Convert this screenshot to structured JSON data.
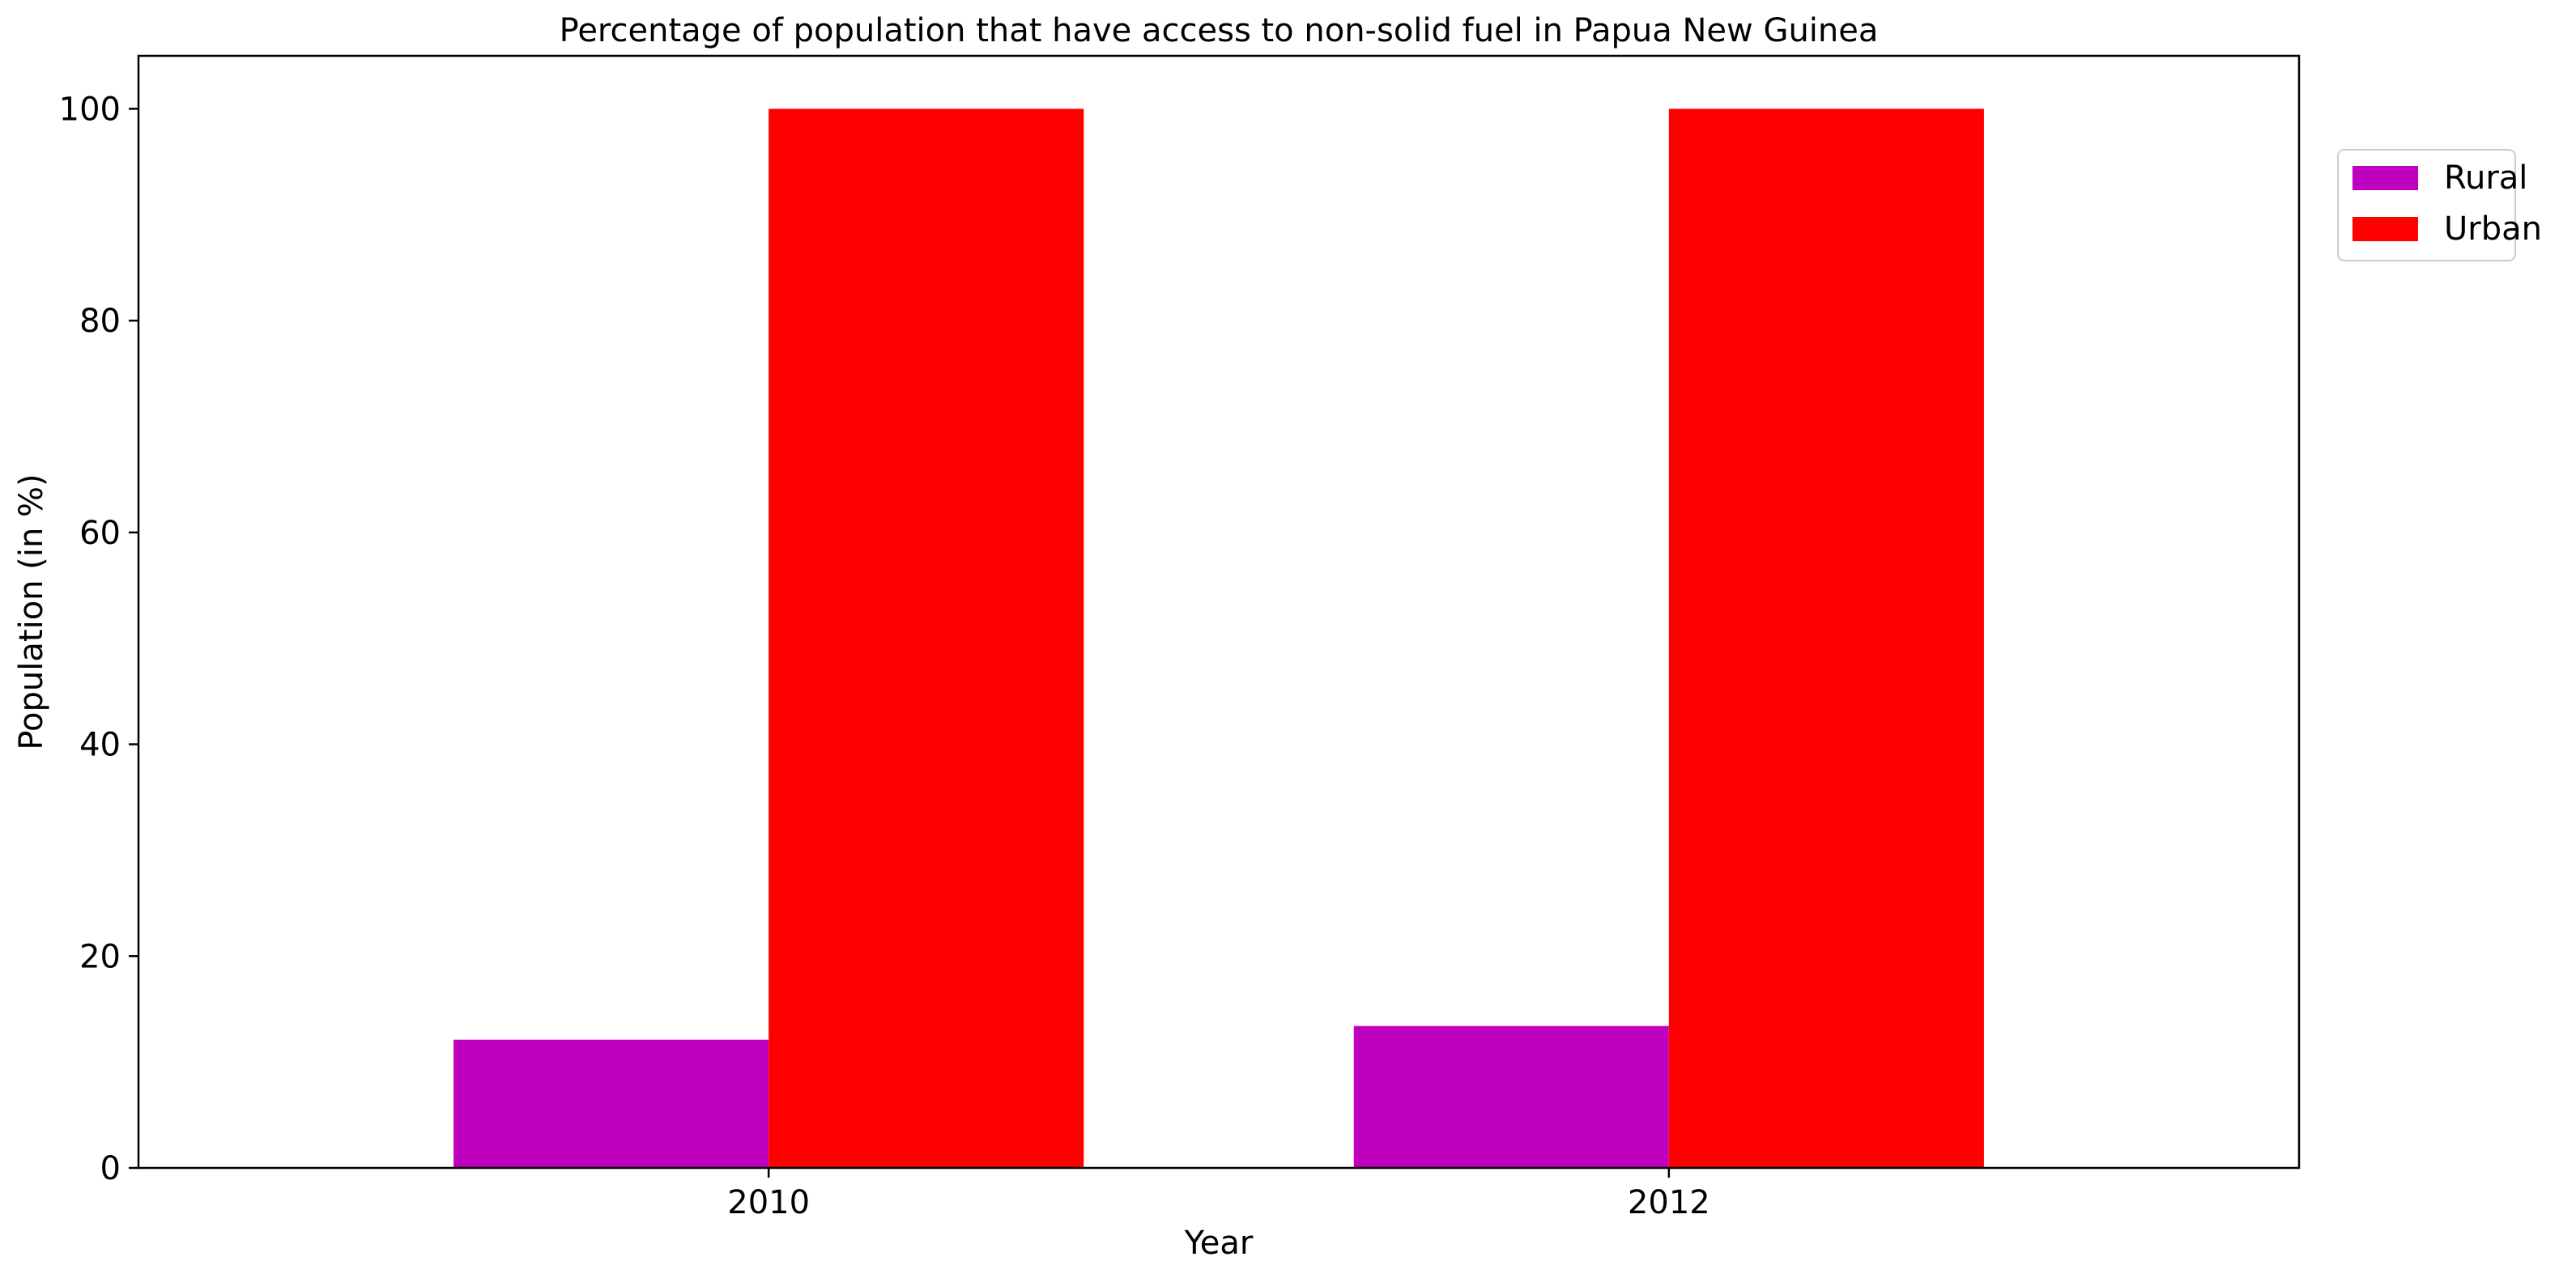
{
  "chart_data": {
    "type": "bar",
    "title": "Percentage of population that have access to non-solid fuel in Papua New Guinea",
    "xlabel": "Year",
    "ylabel": "Population (in %)",
    "categories": [
      "2010",
      "2012"
    ],
    "series": [
      {
        "name": "Rural",
        "values": [
          12.1,
          13.4
        ],
        "color": "#bf00bf"
      },
      {
        "name": "Urban",
        "values": [
          100,
          100
        ],
        "color": "#ff0000"
      }
    ],
    "ylim": [
      0,
      105
    ],
    "yticks": [
      0,
      20,
      40,
      60,
      80,
      100
    ],
    "grid": false,
    "legend_position": "upper-right-outside"
  }
}
